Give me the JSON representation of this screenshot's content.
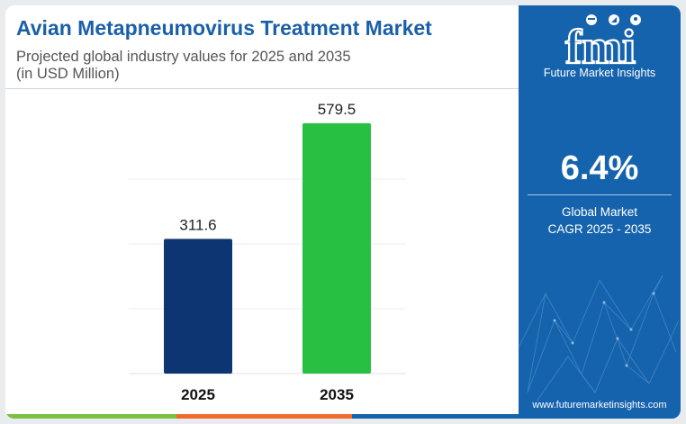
{
  "title": "Avian Metapneumovirus Treatment Market",
  "subtitle_line1": "Projected global industry values for 2025 and 2035",
  "subtitle_line2": "(in USD Million)",
  "brand": {
    "logo_letters": "fmi",
    "name": "Future Market Insights",
    "website": "www.futuremarketinsights.com"
  },
  "highlight": {
    "value": "6.4%",
    "label_line1": "Global Market",
    "label_line2": "CAGR 2025 - 2035"
  },
  "colors": {
    "title": "#1a5fa8",
    "sidebar": "#1663ad",
    "bar_2025": "#0d3572",
    "bar_2035": "#27c043",
    "strip": [
      "#7ac143",
      "#f26a2e",
      "#1663ad"
    ]
  },
  "chart_data": {
    "type": "bar",
    "categories": [
      "2025",
      "2035"
    ],
    "values": [
      311.6,
      579.5
    ],
    "value_labels": [
      "311.6",
      "579.5"
    ],
    "unit": "USD Million",
    "ylim": [
      0,
      600
    ],
    "grid": true,
    "legend": "none"
  }
}
